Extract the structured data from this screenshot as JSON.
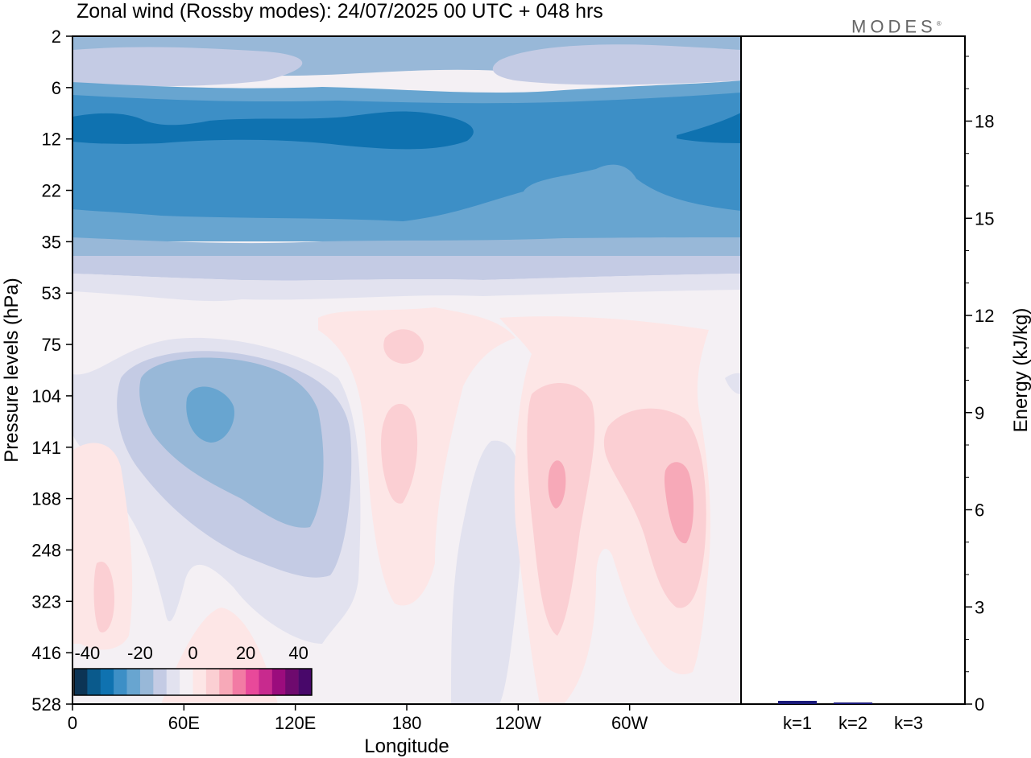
{
  "header": {
    "title": "Zonal wind (Rossby modes):  24/07/2025  00 UTC  + 048 hrs",
    "logo": "MODES",
    "logo_mark": "®"
  },
  "chart_data": [
    {
      "type": "heatmap",
      "title": "Zonal wind (Rossby modes):  24/07/2025  00 UTC  + 048 hrs",
      "xlabel": "Longitude",
      "ylabel": "Pressure levels (hPa)",
      "x_ticks": [
        "0",
        "60E",
        "120E",
        "180",
        "120W",
        "60W"
      ],
      "x_tick_values": [
        0,
        60,
        120,
        180,
        240,
        300
      ],
      "xlim": [
        0,
        360
      ],
      "y_ticks": [
        "2",
        "6",
        "12",
        "22",
        "35",
        "53",
        "75",
        "104",
        "141",
        "188",
        "248",
        "323",
        "416",
        "528"
      ],
      "y_scale": "nonlinear (pressure levels evenly spaced)",
      "y_direction": "increasing downward",
      "colorbar": {
        "labels": [
          "-40",
          "-20",
          "0",
          "20",
          "40"
        ],
        "label_values": [
          -40,
          -20,
          0,
          20,
          40
        ],
        "range": [
          -45,
          45
        ],
        "step": 5,
        "colors": [
          "#0c3455",
          "#0a5a8c",
          "#0f72b0",
          "#3d8fc6",
          "#68a5d0",
          "#98b8d8",
          "#c4cbe4",
          "#e2e2ef",
          "#f4f0f4",
          "#fde6e6",
          "#fbcfd3",
          "#f7a9b8",
          "#f27ba4",
          "#e8499a",
          "#c82a8e",
          "#9b0c7d",
          "#6e0a6e",
          "#48086a"
        ],
        "placement": "bottom-left inset"
      },
      "features": [
        {
          "lon": 0,
          "lon2": 360,
          "level": "6-12",
          "value": -30
        },
        {
          "lon": 200,
          "lon2": 220,
          "level": "12-22",
          "value": -35
        },
        {
          "lon": 72,
          "level": "104-141",
          "value": -25
        },
        {
          "lon": 180,
          "level": "75",
          "value": 10
        },
        {
          "lon": 250,
          "level": "141-188",
          "value": 15
        },
        {
          "lon": 325,
          "level": "141-188",
          "value": 15
        },
        {
          "lon": 20,
          "level": "248-323",
          "value": 5
        },
        {
          "lon": 215,
          "level": "188-528",
          "value": -5
        }
      ]
    },
    {
      "type": "bar",
      "categories": [
        "k=1",
        "k=2",
        "k=3"
      ],
      "values": [
        0.1,
        0.05,
        0.0
      ],
      "ylabel": "Energy (kJ/kg)",
      "ylim": [
        0,
        20
      ],
      "y_ticks": [
        0,
        3,
        6,
        9,
        12,
        15,
        18
      ],
      "bar_color": "#1a1a7a"
    }
  ]
}
